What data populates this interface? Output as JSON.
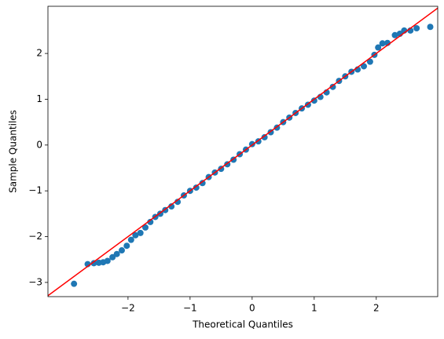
{
  "chart_data": {
    "type": "scatter",
    "x_label": "Theoretical Quantiles",
    "y_label": "Sample Quantiles",
    "xlim": [
      -3.29,
      2.99
    ],
    "ylim": [
      -3.31,
      3.03
    ],
    "xticks": [
      {
        "value": -2,
        "label": "−2"
      },
      {
        "value": -1,
        "label": "−1"
      },
      0,
      1,
      2
    ],
    "yticks": [
      {
        "value": -3,
        "label": "−3"
      },
      {
        "value": -2,
        "label": "−2"
      },
      {
        "value": -1,
        "label": "−1"
      },
      0,
      1,
      2
    ],
    "series": [
      {
        "type": "scatter",
        "color": "#1f77b4",
        "x": [
          -2.87,
          -2.65,
          -2.55,
          -2.47,
          -2.4,
          -2.33,
          -2.25,
          -2.18,
          -2.1,
          -2.02,
          -1.95,
          -1.88,
          -1.8,
          -1.72,
          -1.64,
          -1.56,
          -1.48,
          -1.4,
          -1.3,
          -1.2,
          -1.1,
          -1.0,
          -0.9,
          -0.8,
          -0.7,
          -0.6,
          -0.5,
          -0.4,
          -0.3,
          -0.2,
          -0.1,
          0,
          0.1,
          0.2,
          0.3,
          0.4,
          0.5,
          0.6,
          0.7,
          0.8,
          0.9,
          1.0,
          1.1,
          1.2,
          1.3,
          1.4,
          1.5,
          1.6,
          1.7,
          1.8,
          1.9,
          1.97,
          2.03,
          2.1,
          2.18,
          2.3,
          2.38,
          2.45,
          2.55,
          2.65,
          2.87
        ],
        "values": [
          -3.03,
          -2.6,
          -2.58,
          -2.57,
          -2.56,
          -2.53,
          -2.45,
          -2.38,
          -2.3,
          -2.2,
          -2.07,
          -1.97,
          -1.92,
          -1.8,
          -1.68,
          -1.57,
          -1.5,
          -1.42,
          -1.34,
          -1.24,
          -1.1,
          -1.0,
          -0.93,
          -0.83,
          -0.7,
          -0.6,
          -0.52,
          -0.42,
          -0.32,
          -0.2,
          -0.1,
          0.02,
          0.08,
          0.17,
          0.28,
          0.38,
          0.5,
          0.6,
          0.7,
          0.8,
          0.88,
          0.97,
          1.05,
          1.15,
          1.27,
          1.4,
          1.5,
          1.6,
          1.65,
          1.72,
          1.82,
          1.97,
          2.13,
          2.22,
          2.23,
          2.4,
          2.43,
          2.5,
          2.5,
          2.55,
          2.58
        ]
      },
      {
        "type": "line",
        "color": "#ff0000",
        "x": [
          -3.31,
          3.03
        ],
        "values": [
          -3.31,
          3.03
        ]
      }
    ]
  }
}
